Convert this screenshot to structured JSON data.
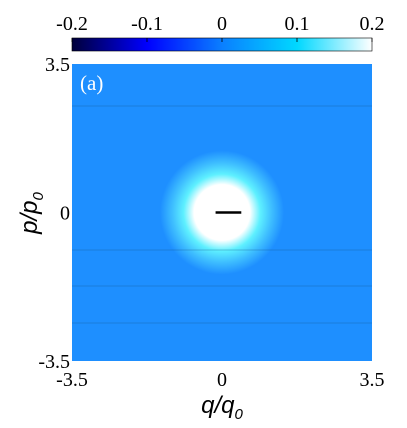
{
  "chart_data": {
    "type": "heatmap",
    "panel_label": "(a)",
    "xlabel": {
      "main": "q/q",
      "sub": "0"
    },
    "ylabel": {
      "main": "p/p",
      "sub": "0"
    },
    "x_ticks": [
      "-3.5",
      "0",
      "3.5"
    ],
    "y_ticks": [
      "3.5",
      "0",
      "-3.5"
    ],
    "xlim": [
      -3.5,
      3.5
    ],
    "ylim": [
      -3.5,
      3.5
    ],
    "colorbar": {
      "ticks": [
        "-0.2",
        "-0.1",
        "0",
        "0.1",
        "0.2"
      ],
      "range": [
        -0.2,
        0.2
      ],
      "colors": [
        "#00003a",
        "#0000ff",
        "#0a7fff",
        "#00d8ff",
        "#ffffff"
      ]
    },
    "background_value": 0,
    "peak": {
      "q": 0,
      "p": 0,
      "value": 0.2
    },
    "annotations": [
      {
        "type": "line_segment",
        "q": [
          -0.15,
          0.45
        ],
        "p": [
          0,
          0
        ],
        "color": "#000000"
      }
    ],
    "colors": {
      "background": "#1e8fff",
      "peak": "#ffffff",
      "halo": "#5ef0ff"
    }
  }
}
